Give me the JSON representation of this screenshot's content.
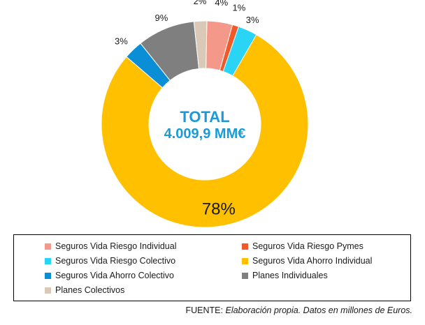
{
  "chart_data": {
    "type": "pie",
    "variant": "donut",
    "center_title": "TOTAL",
    "center_value": "4.009,9 MM€",
    "slices": [
      {
        "name": "Seguros Vida Riesgo Individual",
        "value": 4,
        "label": "4%",
        "color": "#f4998a"
      },
      {
        "name": "Seguros Vida Riesgo Pymes",
        "value": 1,
        "label": "1%",
        "color": "#f05a28"
      },
      {
        "name": "Seguros Vida Riesgo Colectivo",
        "value": 3,
        "label": "3%",
        "color": "#2ad4f5"
      },
      {
        "name": "Seguros Vida Ahorro Individual",
        "value": 78,
        "label": "78%",
        "color": "#ffc000"
      },
      {
        "name": "Seguros Vida Ahorro Colectivo",
        "value": 3,
        "label": "3%",
        "color": "#0a8fd6"
      },
      {
        "name": "Planes Individuales",
        "value": 9,
        "label": "9%",
        "color": "#7f7f7f"
      },
      {
        "name": "Planes Colectivos",
        "value": 2,
        "label": "2%",
        "color": "#d9c9b6"
      }
    ],
    "legend_position": "bottom"
  },
  "legend": {
    "items": [
      "Seguros Vida Riesgo Individual",
      "Seguros Vida Riesgo Pymes",
      "Seguros Vida Riesgo Colectivo",
      "Seguros Vida Ahorro Individual",
      "Seguros Vida Ahorro Colectivo",
      "Planes Individuales",
      "Planes Colectivos"
    ]
  },
  "source": {
    "prefix": "FUENTE:",
    "text": "Elaboración propia. Datos en millones de Euros."
  }
}
